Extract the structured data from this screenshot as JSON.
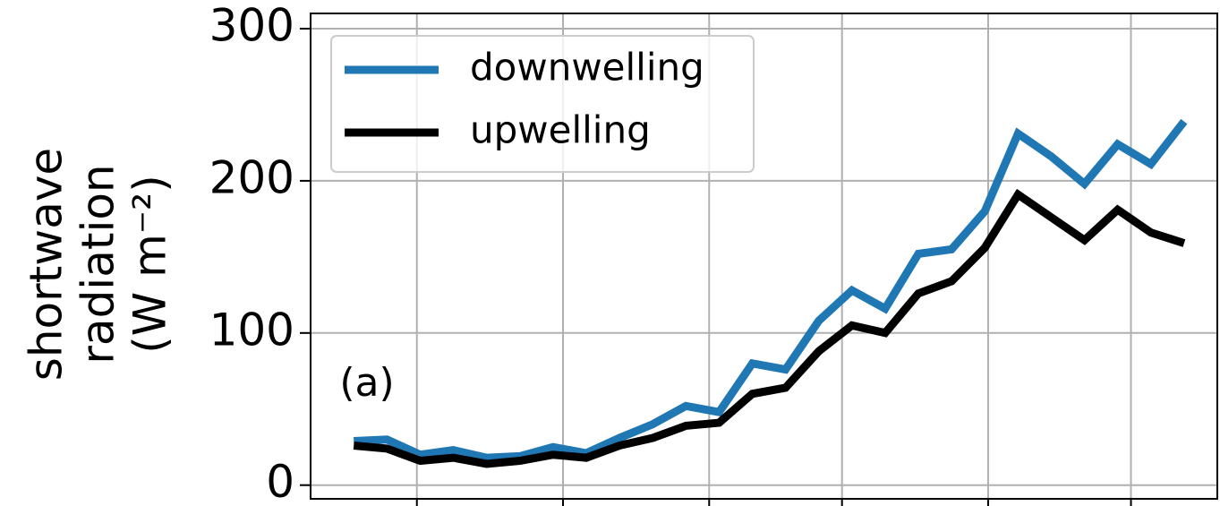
{
  "chart_data": {
    "type": "line",
    "y_label": [
      "shortwave",
      "radiation",
      "(W m⁻²)"
    ],
    "annotation": "(a)",
    "x": [
      0,
      1,
      2,
      3,
      4,
      5,
      6,
      7,
      8,
      9,
      10,
      11,
      12,
      13,
      14,
      15,
      16,
      17,
      18,
      19,
      20,
      21,
      22,
      23,
      24,
      25
    ],
    "xlim": [
      -1.3,
      26
    ],
    "xticks": [
      1.9,
      6.3,
      10.7,
      14.7,
      19.1,
      23.4
    ],
    "ylim": [
      -9,
      310
    ],
    "yticks": [
      0,
      100,
      200,
      300
    ],
    "grid": true,
    "legend": "upper-left",
    "series": [
      {
        "name": "downwelling",
        "color": "#1f77b4",
        "values": [
          29,
          30,
          20,
          23,
          18,
          19,
          25,
          21,
          31,
          40,
          52,
          48,
          80,
          76,
          108,
          128,
          116,
          152,
          155,
          180,
          231,
          216,
          198,
          224,
          211,
          239
        ]
      },
      {
        "name": "upwelling",
        "color": "#000000",
        "values": [
          26,
          24,
          16,
          18,
          14,
          16,
          20,
          18,
          26,
          31,
          39,
          41,
          60,
          64,
          88,
          105,
          100,
          126,
          134,
          156,
          191,
          176,
          161,
          181,
          166,
          159
        ]
      }
    ]
  }
}
